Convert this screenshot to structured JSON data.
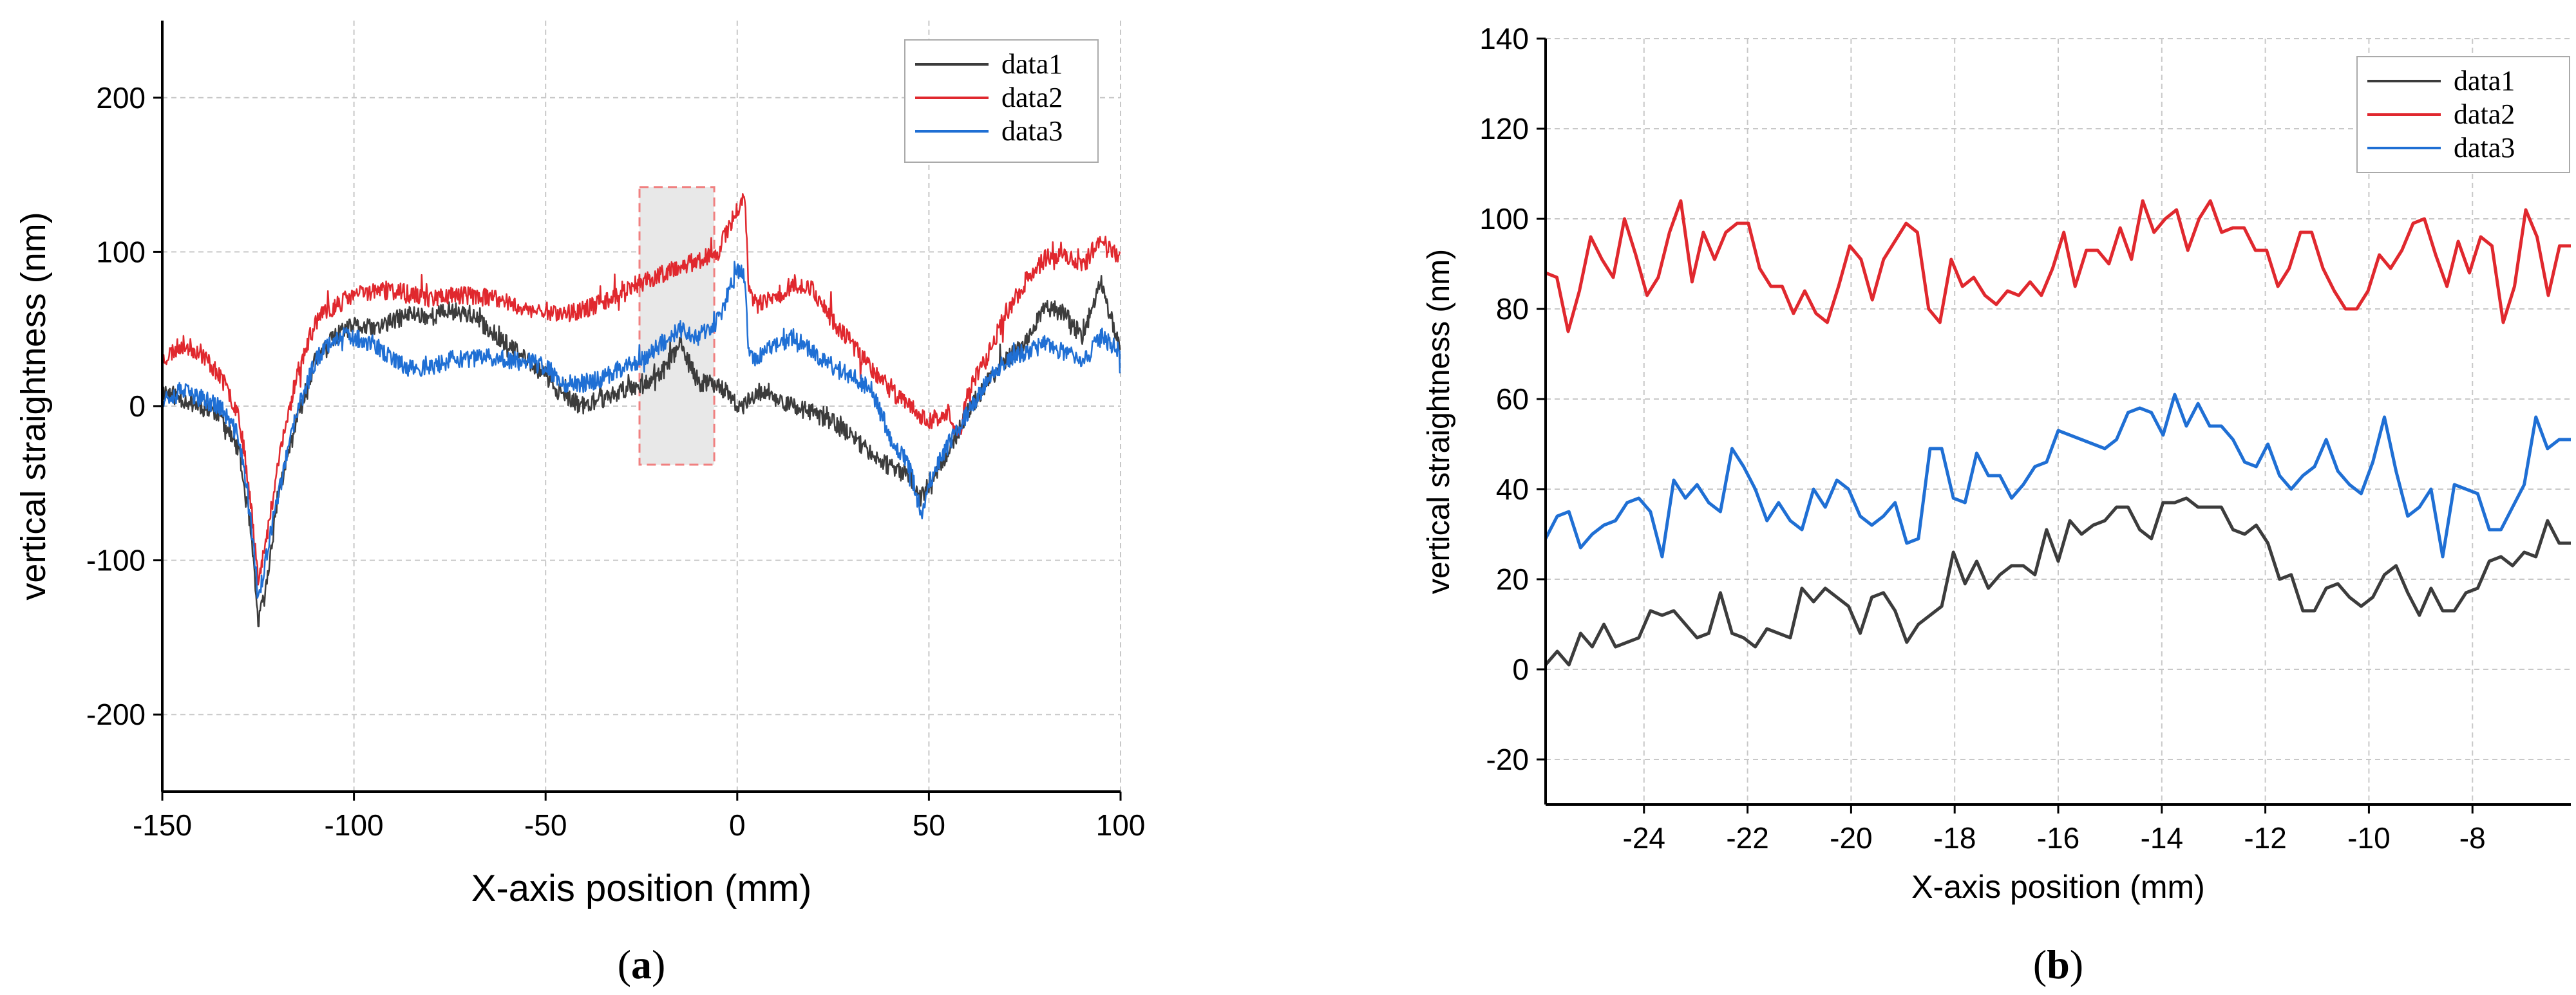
{
  "figure": {
    "panel_labels": [
      "(a)",
      "(b)"
    ]
  },
  "chart_data": [
    {
      "type": "line",
      "panel": "a",
      "title": "",
      "xlabel": "X-axis position (mm)",
      "ylabel": "vertical straightness (nm)",
      "xlim": [
        -150,
        100
      ],
      "ylim": [
        -250,
        250
      ],
      "xticks": [
        -150,
        -100,
        -50,
        0,
        50,
        100
      ],
      "yticks": [
        -200,
        -100,
        0,
        100,
        200
      ],
      "grid": true,
      "legend_position": "top-right",
      "highlight_region": {
        "x": [
          -25.5,
          -6
        ],
        "y": [
          -38,
          142
        ],
        "color": "#e8e8e8",
        "border": "#f08080"
      },
      "series": [
        {
          "name": "data1",
          "color": "#3c3c3c",
          "noise": 6,
          "seed": 11,
          "x": [
            -150,
            -145,
            -140,
            -135,
            -130,
            -127,
            -125,
            -123,
            -120,
            -115,
            -110,
            -105,
            -100,
            -95,
            -90,
            -85,
            -80,
            -75,
            -70,
            -65,
            -60,
            -55,
            -50,
            -45,
            -40,
            -35,
            -30,
            -25,
            -20,
            -15,
            -10,
            -5,
            0,
            2,
            5,
            10,
            15,
            20,
            25,
            30,
            35,
            40,
            45,
            48,
            50,
            55,
            60,
            65,
            70,
            75,
            80,
            85,
            90,
            95,
            100
          ],
          "y": [
            10,
            5,
            0,
            -5,
            -30,
            -80,
            -140,
            -120,
            -60,
            -10,
            30,
            45,
            52,
            50,
            55,
            60,
            58,
            62,
            60,
            50,
            40,
            30,
            20,
            5,
            0,
            5,
            10,
            15,
            20,
            40,
            15,
            15,
            0,
            0,
            10,
            5,
            0,
            -5,
            -10,
            -20,
            -30,
            -40,
            -45,
            -60,
            -50,
            -30,
            -5,
            15,
            30,
            40,
            65,
            60,
            45,
            80,
            35
          ]
        },
        {
          "name": "data2",
          "color": "#e0282e",
          "noise": 6,
          "seed": 23,
          "x": [
            -150,
            -145,
            -140,
            -135,
            -130,
            -127,
            -125,
            -123,
            -120,
            -115,
            -110,
            -105,
            -100,
            -95,
            -90,
            -85,
            -80,
            -75,
            -70,
            -65,
            -60,
            -55,
            -50,
            -45,
            -40,
            -35,
            -30,
            -25,
            -20,
            -15,
            -10,
            -5,
            0,
            2,
            3,
            5,
            10,
            15,
            20,
            25,
            30,
            35,
            40,
            45,
            50,
            55,
            58,
            60,
            65,
            70,
            75,
            80,
            85,
            90,
            95,
            100
          ],
          "y": [
            30,
            40,
            35,
            20,
            -5,
            -60,
            -110,
            -90,
            -40,
            20,
            55,
            65,
            72,
            75,
            75,
            72,
            70,
            72,
            72,
            70,
            68,
            62,
            62,
            60,
            62,
            68,
            75,
            80,
            85,
            90,
            95,
            100,
            128,
            138,
            75,
            65,
            70,
            80,
            75,
            55,
            40,
            25,
            10,
            0,
            -10,
            -5,
            -20,
            10,
            30,
            60,
            80,
            95,
            100,
            90,
            110,
            95
          ]
        },
        {
          "name": "data3",
          "color": "#1f6fd4",
          "noise": 6,
          "seed": 37,
          "x": [
            -150,
            -145,
            -140,
            -135,
            -130,
            -127,
            -125,
            -123,
            -120,
            -115,
            -110,
            -105,
            -100,
            -95,
            -90,
            -85,
            -80,
            -75,
            -70,
            -65,
            -60,
            -55,
            -50,
            -45,
            -40,
            -35,
            -30,
            -25,
            -20,
            -15,
            -10,
            -5,
            0,
            2,
            3,
            5,
            10,
            15,
            20,
            25,
            30,
            35,
            40,
            45,
            48,
            50,
            55,
            60,
            65,
            70,
            75,
            80,
            85,
            90,
            95,
            100
          ],
          "y": [
            5,
            10,
            5,
            0,
            -20,
            -70,
            -125,
            -100,
            -60,
            -5,
            30,
            45,
            45,
            40,
            30,
            25,
            25,
            30,
            30,
            32,
            30,
            30,
            25,
            15,
            15,
            18,
            25,
            30,
            40,
            50,
            45,
            55,
            88,
            85,
            35,
            30,
            40,
            45,
            35,
            25,
            20,
            10,
            -20,
            -40,
            -70,
            -50,
            -25,
            -5,
            15,
            30,
            35,
            40,
            35,
            30,
            45,
            35
          ]
        }
      ]
    },
    {
      "type": "line",
      "panel": "b",
      "title": "",
      "xlabel": "X-axis position (mm)",
      "ylabel": "vertical straightness (nm)",
      "xlim": [
        -25.9,
        -6.1
      ],
      "ylim": [
        -30,
        140
      ],
      "xticks": [
        -24,
        -22,
        -20,
        -18,
        -16,
        -14,
        -12,
        -10,
        -8
      ],
      "yticks": [
        -20,
        0,
        20,
        40,
        60,
        80,
        100,
        120,
        140
      ],
      "grid": true,
      "legend_position": "top-right",
      "series": [
        {
          "name": "data1",
          "color": "#3c3c3c",
          "y": [
            1,
            4,
            1,
            8,
            5,
            10,
            5,
            6,
            7,
            13,
            12,
            13,
            10,
            7,
            8,
            17,
            8,
            7,
            5,
            9,
            8,
            7,
            18,
            15,
            18,
            16,
            14,
            8,
            16,
            17,
            13,
            6,
            10,
            12,
            14,
            26,
            19,
            24,
            18,
            21,
            23,
            23,
            21,
            31,
            24,
            33,
            30,
            32,
            33,
            36,
            36,
            31,
            29,
            37,
            37,
            38,
            36,
            36,
            36,
            31,
            30,
            32,
            28,
            20,
            21,
            13,
            13,
            18,
            19,
            16,
            14,
            16,
            21,
            23,
            17,
            12,
            18,
            13,
            13,
            17,
            18,
            24,
            25,
            23,
            26,
            25,
            33,
            28,
            28
          ]
        },
        {
          "name": "data2",
          "color": "#e0282e",
          "y": [
            88,
            87,
            75,
            84,
            96,
            91,
            87,
            100,
            92,
            83,
            87,
            97,
            104,
            86,
            97,
            91,
            97,
            99,
            99,
            89,
            85,
            85,
            79,
            84,
            79,
            77,
            85,
            94,
            91,
            82,
            91,
            95,
            99,
            97,
            80,
            77,
            91,
            85,
            87,
            83,
            81,
            84,
            83,
            86,
            83,
            89,
            97,
            85,
            93,
            93,
            90,
            98,
            91,
            104,
            97,
            100,
            102,
            93,
            100,
            104,
            97,
            98,
            98,
            93,
            93,
            85,
            89,
            97,
            97,
            89,
            84,
            80,
            80,
            84,
            92,
            89,
            93,
            99,
            100,
            92,
            85,
            95,
            88,
            96,
            94,
            77,
            85,
            102,
            96,
            83,
            94,
            94
          ]
        },
        {
          "name": "data3",
          "color": "#1f6fd4",
          "y": [
            29,
            34,
            35,
            27,
            30,
            32,
            33,
            37,
            38,
            35,
            25,
            42,
            38,
            41,
            37,
            35,
            49,
            45,
            40,
            33,
            37,
            33,
            31,
            40,
            36,
            42,
            40,
            34,
            32,
            34,
            37,
            28,
            29,
            49,
            49,
            38,
            37,
            48,
            43,
            43,
            38,
            41,
            45,
            46,
            53,
            52,
            51,
            50,
            49,
            51,
            57,
            58,
            57,
            52,
            61,
            54,
            59,
            54,
            54,
            51,
            46,
            45,
            50,
            43,
            40,
            43,
            45,
            51,
            44,
            41,
            39,
            46,
            56,
            44,
            34,
            36,
            40,
            25,
            41,
            40,
            39,
            31,
            31,
            36,
            41,
            56,
            49,
            51,
            51
          ]
        }
      ]
    }
  ]
}
